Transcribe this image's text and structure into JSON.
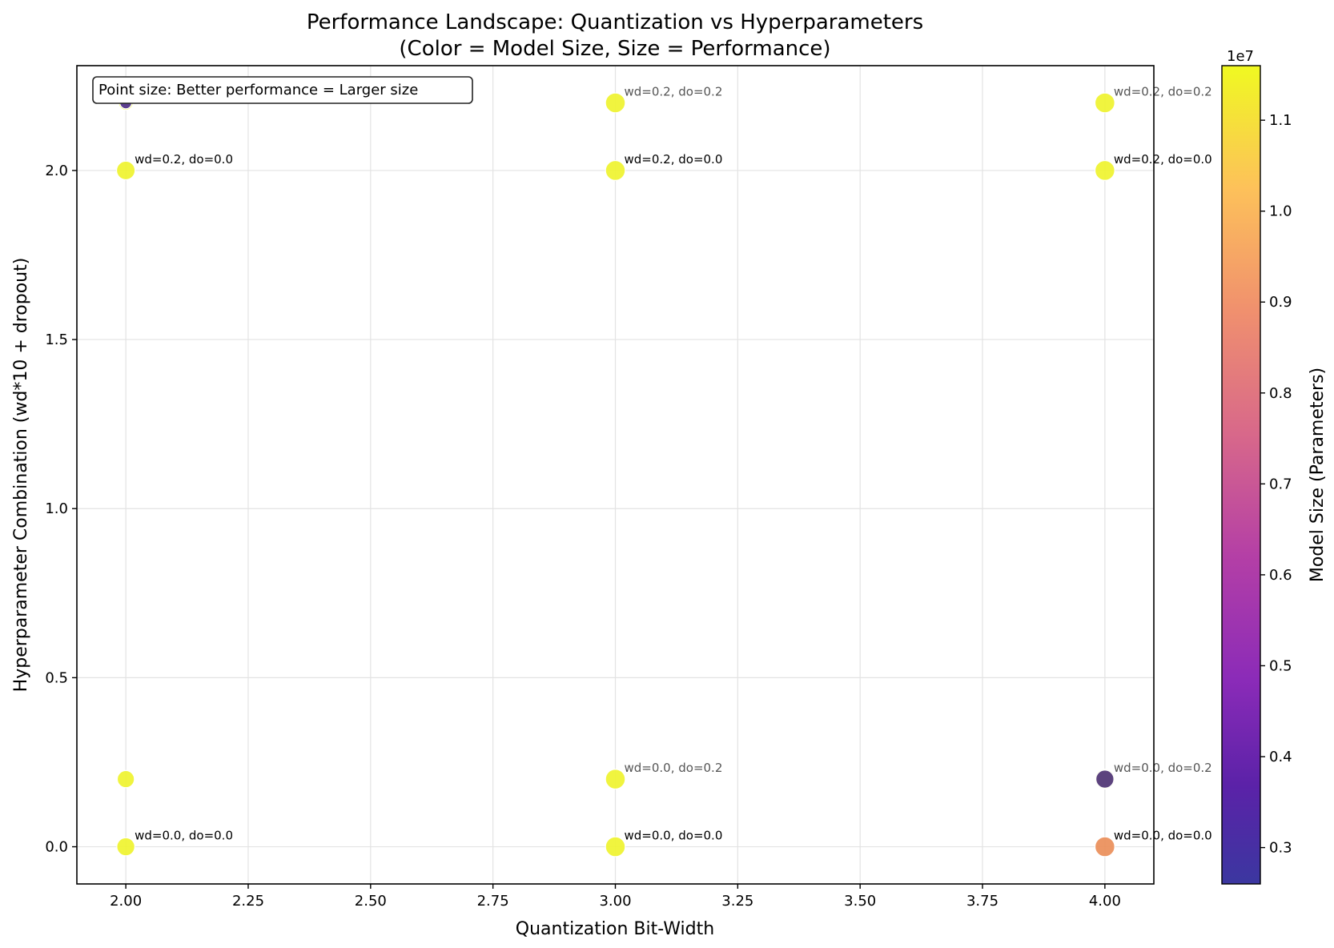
{
  "chart_data": {
    "type": "scatter",
    "title": "Performance Landscape: Quantization vs Hyperparameters",
    "subtitle": "(Color = Model Size, Size = Performance)",
    "xlabel": "Quantization Bit-Width",
    "ylabel": "Hyperparameter Combination (wd*10 + dropout)",
    "xlim": [
      1.9,
      4.1
    ],
    "ylim": [
      -0.11,
      2.31
    ],
    "x_ticks": [
      "2.00",
      "2.25",
      "2.50",
      "2.75",
      "3.00",
      "3.25",
      "3.50",
      "3.75",
      "4.00"
    ],
    "y_ticks": [
      "0.0",
      "0.5",
      "1.0",
      "1.5",
      "2.0"
    ],
    "grid": true,
    "annotation": "Point size: Better performance = Larger size",
    "colorbar": {
      "label": "Model Size (Parameters)",
      "offset_text": "1e7",
      "range": [
        0.26,
        1.16
      ],
      "ticks": [
        "0.3",
        "0.4",
        "0.5",
        "0.6",
        "0.7",
        "0.8",
        "0.9",
        "1.0",
        "1.1"
      ],
      "colormap": "plasma"
    },
    "points": [
      {
        "x": 2,
        "y": 2.2,
        "size_rel": 0.55,
        "color": "#f0f921",
        "label": ""
      },
      {
        "x": 2,
        "y": 2.2,
        "size_rel": 0.4,
        "color": "#4c2a99",
        "label": ""
      },
      {
        "x": 2,
        "y": 2.0,
        "size_rel": 0.78,
        "color": "#eef32a",
        "label": "wd=0.2, do=0.0"
      },
      {
        "x": 2,
        "y": 0.2,
        "size_rel": 0.7,
        "color": "#eef32a",
        "label": ""
      },
      {
        "x": 2,
        "y": 0.0,
        "size_rel": 0.75,
        "color": "#eef32a",
        "label": "wd=0.0, do=0.0"
      },
      {
        "x": 3,
        "y": 2.2,
        "size_rel": 0.85,
        "color": "#eef32a",
        "label": "wd=0.2, do=0.2"
      },
      {
        "x": 3,
        "y": 2.0,
        "size_rel": 0.85,
        "color": "#eef32a",
        "label": "wd=0.2, do=0.0"
      },
      {
        "x": 3,
        "y": 0.2,
        "size_rel": 0.85,
        "color": "#eef32a",
        "label": "wd=0.0, do=0.2"
      },
      {
        "x": 3,
        "y": 0.0,
        "size_rel": 0.85,
        "color": "#eef32a",
        "label": "wd=0.0, do=0.0"
      },
      {
        "x": 4,
        "y": 2.2,
        "size_rel": 0.85,
        "color": "#eef32a",
        "label": "wd=0.2, do=0.2"
      },
      {
        "x": 4,
        "y": 2.0,
        "size_rel": 0.85,
        "color": "#eef32a",
        "label": "wd=0.2, do=0.0"
      },
      {
        "x": 4,
        "y": 0.2,
        "size_rel": 0.85,
        "color": "#f0f921",
        "label": "wd=0.0, do=0.2"
      },
      {
        "x": 4,
        "y": 0.2,
        "size_rel": 0.75,
        "color": "#4b2f86",
        "label": ""
      },
      {
        "x": 4,
        "y": 0.0,
        "size_rel": 0.85,
        "color": "#ea8c55",
        "label": "wd=0.0, do=0.0"
      }
    ]
  }
}
